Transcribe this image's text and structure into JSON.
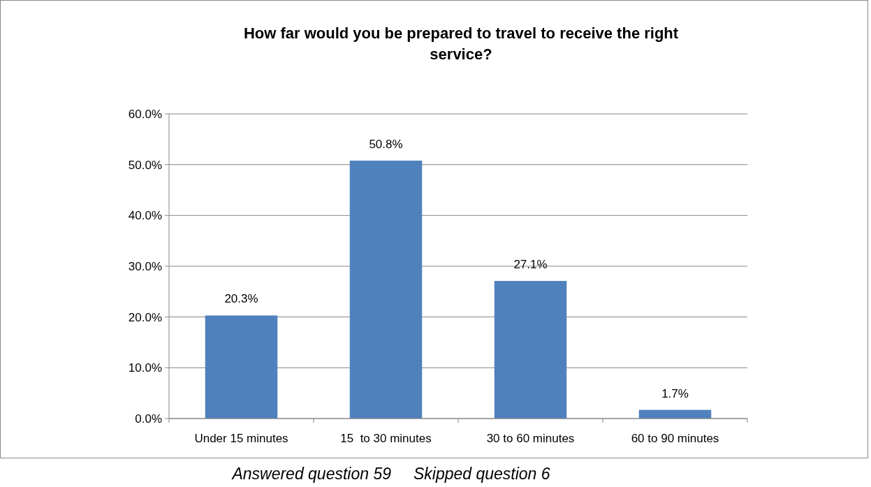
{
  "chart_data": {
    "type": "bar",
    "title": "How far would you be prepared to travel to receive the right service?",
    "categories": [
      "Under 15 minutes",
      "15  to 30 minutes",
      "30 to 60 minutes",
      "60 to 90 minutes"
    ],
    "values": [
      20.3,
      50.8,
      27.1,
      1.7
    ],
    "value_labels": [
      "20.3%",
      "50.8%",
      "27.1%",
      "1.7%"
    ],
    "color": "#4f81bd",
    "ylim": [
      0,
      60
    ],
    "yticks": [
      {
        "value": 0,
        "label": "0.0%"
      },
      {
        "value": 10,
        "label": "10.0%"
      },
      {
        "value": 20,
        "label": "20.0%"
      },
      {
        "value": 30,
        "label": "30.0%"
      },
      {
        "value": 40,
        "label": "40.0%"
      },
      {
        "value": 50,
        "label": "50.0%"
      },
      {
        "value": 60,
        "label": "60.0%"
      }
    ],
    "grid": "y",
    "annotations": [
      "Answered question 59     Skipped question 6"
    ]
  }
}
